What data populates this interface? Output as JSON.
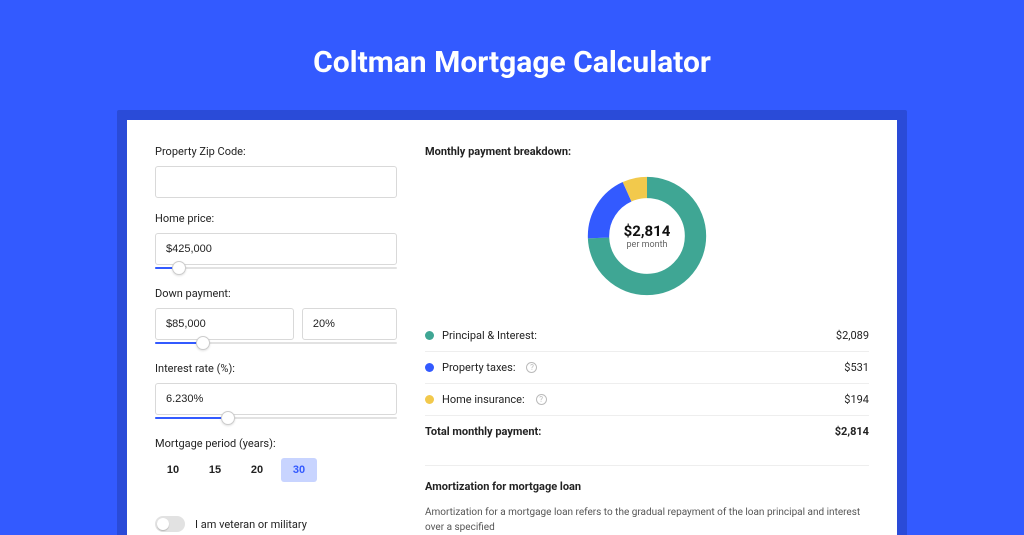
{
  "title": "Coltman Mortgage Calculator",
  "form": {
    "zip": {
      "label": "Property Zip Code:",
      "value": ""
    },
    "price": {
      "label": "Home price:",
      "value": "$425,000",
      "slider_fill_pct": 10
    },
    "down": {
      "label": "Down payment:",
      "value": "$85,000",
      "pct": "20%",
      "slider_fill_pct": 20
    },
    "rate": {
      "label": "Interest rate (%):",
      "value": "6.230%",
      "slider_fill_pct": 30
    },
    "period": {
      "label": "Mortgage period (years):",
      "options": [
        "10",
        "15",
        "20",
        "30"
      ],
      "active_index": 3
    },
    "veteran": {
      "label": "I am veteran or military",
      "on": false
    }
  },
  "breakdown": {
    "title": "Monthly payment breakdown:",
    "center_amount": "$2,814",
    "center_sub": "per month",
    "rows": [
      {
        "label": "Principal & Interest:",
        "value": "$2,089",
        "color": "#3fa694",
        "num": 2089,
        "info": false
      },
      {
        "label": "Property taxes:",
        "value": "$531",
        "color": "#335aff",
        "num": 531,
        "info": true
      },
      {
        "label": "Home insurance:",
        "value": "$194",
        "color": "#f2c94c",
        "num": 194,
        "info": true
      }
    ],
    "total": {
      "label": "Total monthly payment:",
      "value": "$2,814"
    }
  },
  "amort": {
    "title": "Amortization for mortgage loan",
    "text": "Amortization for a mortgage loan refers to the gradual repayment of the loan principal and interest over a specified"
  },
  "colors": {
    "bg": "#335aff",
    "panel_wrap": "#2a4bd8",
    "active_btn": "#c8d4ff"
  }
}
